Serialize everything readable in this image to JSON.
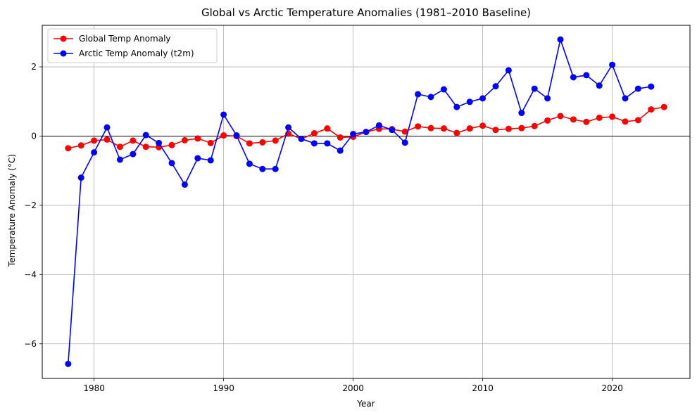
{
  "chart_data": {
    "type": "line",
    "title": "Global vs Arctic Temperature Anomalies (1981–2010 Baseline)",
    "xlabel": "Year",
    "ylabel": "Temperature Anomaly (°C)",
    "xlim": [
      1976,
      2026
    ],
    "ylim": [
      -7.0,
      3.2
    ],
    "xticks": [
      1980,
      1990,
      2000,
      2010,
      2020
    ],
    "yticks": [
      -6,
      -4,
      -2,
      0,
      2
    ],
    "grid": true,
    "zero_line": 0,
    "legend_position": "top-left",
    "series": [
      {
        "name": "Global Temp Anomaly",
        "color": "#ff0000",
        "marker": "circle",
        "x": [
          1978,
          1979,
          1980,
          1981,
          1982,
          1983,
          1984,
          1985,
          1986,
          1987,
          1988,
          1989,
          1990,
          1991,
          1992,
          1993,
          1994,
          1995,
          1996,
          1997,
          1998,
          1999,
          2000,
          2001,
          2002,
          2003,
          2004,
          2005,
          2006,
          2007,
          2008,
          2009,
          2010,
          2011,
          2012,
          2013,
          2014,
          2015,
          2016,
          2017,
          2018,
          2019,
          2020,
          2021,
          2022,
          2023,
          2024
        ],
        "values": [
          -0.35,
          -0.27,
          -0.13,
          -0.1,
          -0.31,
          -0.13,
          -0.31,
          -0.32,
          -0.26,
          -0.12,
          -0.07,
          -0.2,
          0.02,
          0.0,
          -0.21,
          -0.18,
          -0.13,
          0.07,
          -0.08,
          0.08,
          0.22,
          -0.04,
          -0.02,
          0.12,
          0.21,
          0.2,
          0.13,
          0.28,
          0.23,
          0.22,
          0.09,
          0.22,
          0.3,
          0.18,
          0.21,
          0.23,
          0.29,
          0.45,
          0.58,
          0.48,
          0.41,
          0.53,
          0.56,
          0.42,
          0.46,
          0.77,
          0.84
        ]
      },
      {
        "name": "Arctic Temp Anomaly (t2m)",
        "color": "#0000ff",
        "marker": "circle",
        "x": [
          1978,
          1979,
          1980,
          1981,
          1982,
          1983,
          1984,
          1985,
          1986,
          1987,
          1988,
          1989,
          1990,
          1991,
          1992,
          1993,
          1994,
          1995,
          1996,
          1997,
          1998,
          1999,
          2000,
          2001,
          2002,
          2003,
          2004,
          2005,
          2006,
          2007,
          2008,
          2009,
          2010,
          2011,
          2012,
          2013,
          2014,
          2015,
          2016,
          2017,
          2018,
          2019,
          2020,
          2021,
          2022,
          2023
        ],
        "values": [
          -6.58,
          -1.2,
          -0.47,
          0.25,
          -0.68,
          -0.52,
          0.03,
          -0.2,
          -0.78,
          -1.4,
          -0.64,
          -0.7,
          0.62,
          0.02,
          -0.8,
          -0.95,
          -0.95,
          0.25,
          -0.08,
          -0.21,
          -0.21,
          -0.42,
          0.06,
          0.12,
          0.31,
          0.18,
          -0.19,
          1.21,
          1.13,
          1.35,
          0.84,
          0.99,
          1.09,
          1.44,
          1.9,
          0.67,
          1.37,
          1.09,
          2.79,
          1.7,
          1.76,
          1.46,
          2.06,
          1.09,
          1.37,
          1.43
        ]
      }
    ]
  }
}
